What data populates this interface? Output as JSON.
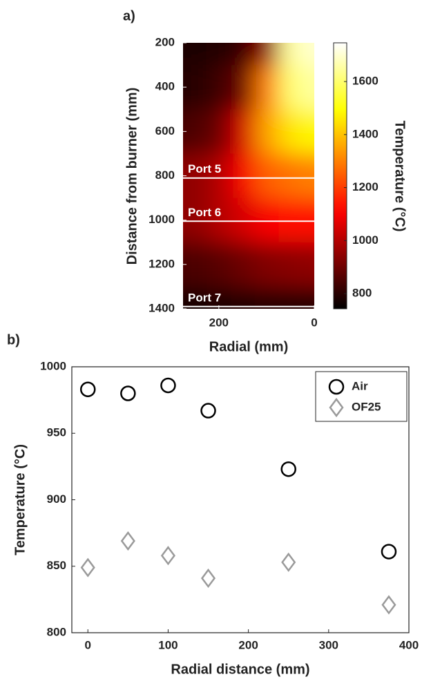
{
  "chart_data": [
    {
      "type": "heatmap",
      "title": "a)",
      "xlabel": "Radial (mm)",
      "ylabel": "Distance from burner (mm)",
      "x": [
        250,
        200,
        150,
        100,
        50,
        10
      ],
      "y": [
        200,
        400,
        600,
        800,
        1000,
        1200,
        1400
      ],
      "z": [
        [
          780,
          790,
          820,
          950,
          1650,
          1700
        ],
        [
          800,
          830,
          900,
          1300,
          1600,
          1650
        ],
        [
          850,
          900,
          1050,
          1350,
          1450,
          1480
        ],
        [
          950,
          1000,
          1100,
          1250,
          1280,
          1300
        ],
        [
          950,
          1000,
          1050,
          1100,
          1120,
          1130
        ],
        [
          850,
          870,
          900,
          930,
          940,
          950
        ],
        [
          770,
          780,
          790,
          800,
          800,
          800
        ]
      ],
      "xlim": [
        275,
        0
      ],
      "xticks": [
        200,
        0
      ],
      "ylim": [
        1400,
        200
      ],
      "yticks": [
        200,
        400,
        600,
        800,
        1000,
        1200,
        1400
      ],
      "colormap": "hot",
      "clim": [
        743,
        1746
      ],
      "cticks": [
        800,
        1000,
        1200,
        1400,
        1600
      ],
      "colorbar_label": "Temperature (°C)",
      "annotations": [
        {
          "text": "Port 5",
          "y": 810
        },
        {
          "text": "Port 6",
          "y": 1005
        },
        {
          "text": "Port 7",
          "y": 1390
        }
      ]
    },
    {
      "type": "scatter",
      "title": "b)",
      "xlabel": "Radial distance (mm)",
      "ylabel": "Temperature (°C)",
      "xlim": [
        -20,
        400
      ],
      "xticks": [
        0,
        100,
        200,
        300,
        400
      ],
      "ylim": [
        800,
        1000
      ],
      "yticks": [
        800,
        850,
        900,
        950,
        1000
      ],
      "legend": "upper right",
      "series": [
        {
          "name": "Air",
          "color": "#000000",
          "marker": "circle",
          "x": [
            0,
            50,
            100,
            150,
            250,
            375
          ],
          "values": [
            983,
            980,
            986,
            967,
            923,
            861
          ]
        },
        {
          "name": "OF25",
          "color": "#9a9a9a",
          "marker": "diamond",
          "x": [
            0,
            50,
            100,
            150,
            250,
            375
          ],
          "values": [
            849,
            869,
            858,
            841,
            853,
            821
          ]
        }
      ]
    }
  ]
}
